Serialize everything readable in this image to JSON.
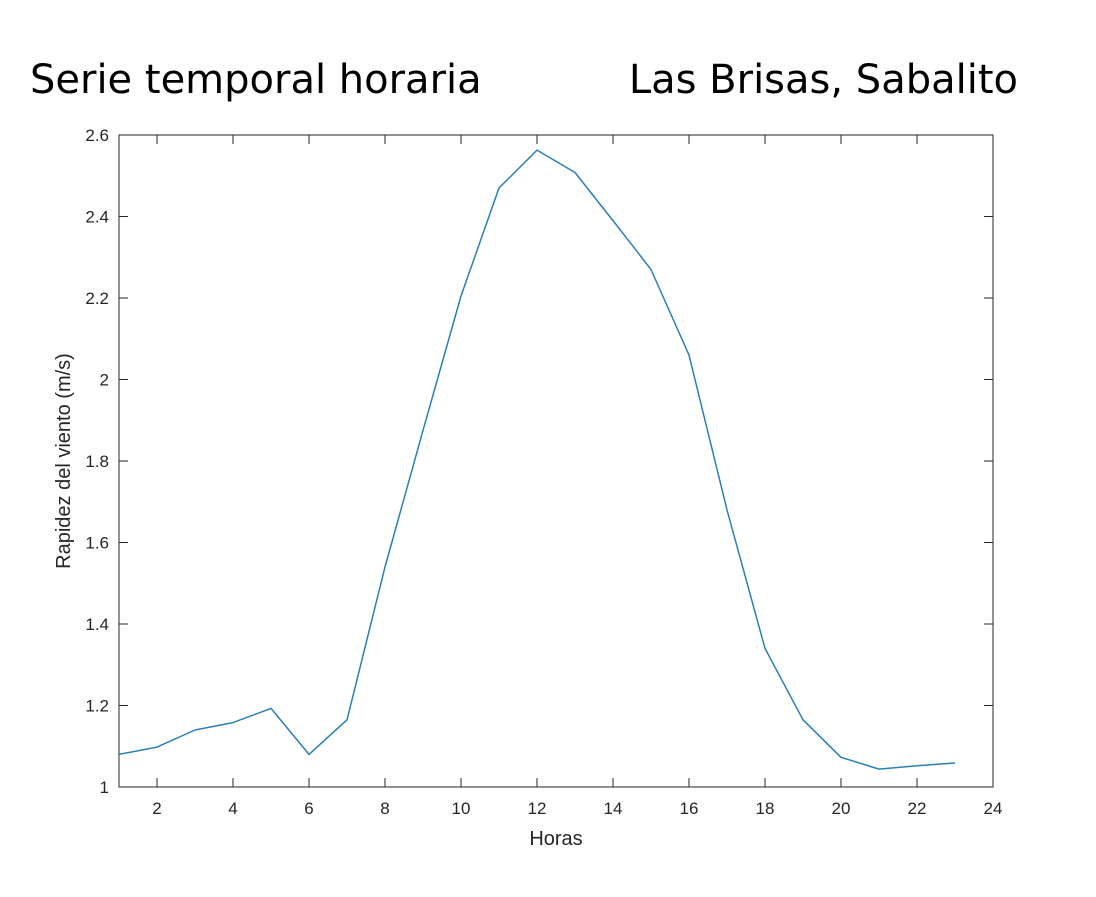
{
  "header": {
    "title_left": "Serie temporal horaria",
    "title_right": "Las Brisas, Sabalito"
  },
  "chart_data": {
    "type": "line",
    "xlabel": "Horas",
    "ylabel": "Rapidez del viento (m/s)",
    "xlim": [
      1,
      24
    ],
    "ylim": [
      1,
      2.6
    ],
    "xticks": [
      2,
      4,
      6,
      8,
      10,
      12,
      14,
      16,
      18,
      20,
      22,
      24
    ],
    "yticks": [
      1,
      1.2,
      1.4,
      1.6,
      1.8,
      2,
      2.2,
      2.4,
      2.6
    ],
    "grid": false,
    "line_color": "#2a7fb3",
    "series": [
      {
        "x": [
          1,
          2,
          3,
          4,
          5,
          6,
          7,
          8,
          9,
          10,
          11,
          12,
          13,
          14,
          15,
          16,
          17,
          18,
          19,
          20,
          21,
          22,
          23
        ],
        "values": [
          1.08,
          1.098,
          1.14,
          1.158,
          1.193,
          1.08,
          1.165,
          1.54,
          1.875,
          2.205,
          2.47,
          2.563,
          2.508,
          2.39,
          2.27,
          2.06,
          1.68,
          1.34,
          1.165,
          1.073,
          1.044,
          1.052,
          1.059
        ]
      }
    ]
  }
}
